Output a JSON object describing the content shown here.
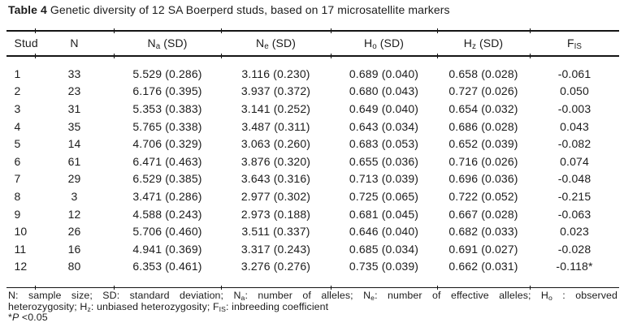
{
  "caption": {
    "label": "Table 4",
    "text": " Genetic diversity of 12 SA Boerperd studs, based on 17 microsatellite markers"
  },
  "table": {
    "columns": [
      {
        "name": "stud",
        "header": [
          {
            "t": "Stud"
          }
        ]
      },
      {
        "name": "n",
        "header": [
          {
            "t": "N"
          }
        ]
      },
      {
        "name": "na",
        "header": [
          {
            "t": "N"
          },
          {
            "sub": "a"
          },
          {
            "t": " (SD)"
          }
        ]
      },
      {
        "name": "ne",
        "header": [
          {
            "t": "N"
          },
          {
            "sub": "e"
          },
          {
            "t": " (SD)"
          }
        ]
      },
      {
        "name": "ho",
        "header": [
          {
            "t": "H"
          },
          {
            "sub": "o"
          },
          {
            "t": " (SD)"
          }
        ]
      },
      {
        "name": "hz",
        "header": [
          {
            "t": "H"
          },
          {
            "sub": "z"
          },
          {
            "t": " (SD)"
          }
        ]
      },
      {
        "name": "fis",
        "header": [
          {
            "t": "F"
          },
          {
            "sub": "IS"
          }
        ]
      }
    ],
    "rows": [
      [
        "1",
        "33",
        "5.529 (0.286)",
        "3.116 (0.230)",
        "0.689 (0.040)",
        "0.658 (0.028)",
        "-0.061"
      ],
      [
        "2",
        "23",
        "6.176 (0.395)",
        "3.937 (0.372)",
        "0.680 (0.043)",
        "0.727 (0.026)",
        "0.050"
      ],
      [
        "3",
        "31",
        "5.353 (0.383)",
        "3.141 (0.252)",
        "0.649 (0.040)",
        "0.654 (0.032)",
        "-0.003"
      ],
      [
        "4",
        "35",
        "5.765 (0.338)",
        "3.487 (0.311)",
        "0.643 (0.034)",
        "0.686 (0.028)",
        "0.043"
      ],
      [
        "5",
        "14",
        "4.706 (0.329)",
        "3.063 (0.260)",
        "0.683 (0.053)",
        "0.652 (0.039)",
        "-0.082"
      ],
      [
        "6",
        "61",
        "6.471 (0.463)",
        "3.876 (0.320)",
        "0.655 (0.036)",
        "0.716 (0.026)",
        "0.074"
      ],
      [
        "7",
        "29",
        "6.529 (0.385)",
        "3.643 (0.316)",
        "0.713 (0.039)",
        "0.696 (0.036)",
        "-0.048"
      ],
      [
        "8",
        "3",
        "3.471 (0.286)",
        "2.977 (0.302)",
        "0.725 (0.065)",
        "0.722 (0.052)",
        "-0.215"
      ],
      [
        "9",
        "12",
        "4.588 (0.243)",
        "2.973 (0.188)",
        "0.681 (0.045)",
        "0.667 (0.028)",
        "-0.063"
      ],
      [
        "10",
        "26",
        "5.706 (0.460)",
        "3.511 (0.337)",
        "0.646 (0.040)",
        "0.682 (0.033)",
        "0.023"
      ],
      [
        "11",
        "16",
        "4.941 (0.369)",
        "3.317 (0.243)",
        "0.685 (0.034)",
        "0.691 (0.027)",
        "-0.028"
      ],
      [
        "12",
        "80",
        "6.353 (0.461)",
        "3.276 (0.276)",
        "0.735 (0.039)",
        "0.662 (0.031)",
        "-0.118*"
      ]
    ]
  },
  "footnote": {
    "line1": [
      {
        "t": "N: sample size; SD: standard deviation; N"
      },
      {
        "sub": "a"
      },
      {
        "t": ": number of alleles; N"
      },
      {
        "sub": "e"
      },
      {
        "t": ": number of effective alleles; H"
      },
      {
        "sub": "o"
      },
      {
        "t": " : observed"
      }
    ],
    "line2": [
      {
        "t": "heterozygosity; H"
      },
      {
        "sub": "z"
      },
      {
        "t": ": unbiased heterozygosity; F"
      },
      {
        "sub": "IS"
      },
      {
        "t": ": inbreeding coefficient"
      }
    ],
    "line3": [
      {
        "t": "*"
      },
      {
        "i": "P"
      },
      {
        "t": " <0.05"
      }
    ]
  },
  "colors": {
    "text": "#1c1c1c",
    "rule": "#141414",
    "background": "#ffffff"
  }
}
